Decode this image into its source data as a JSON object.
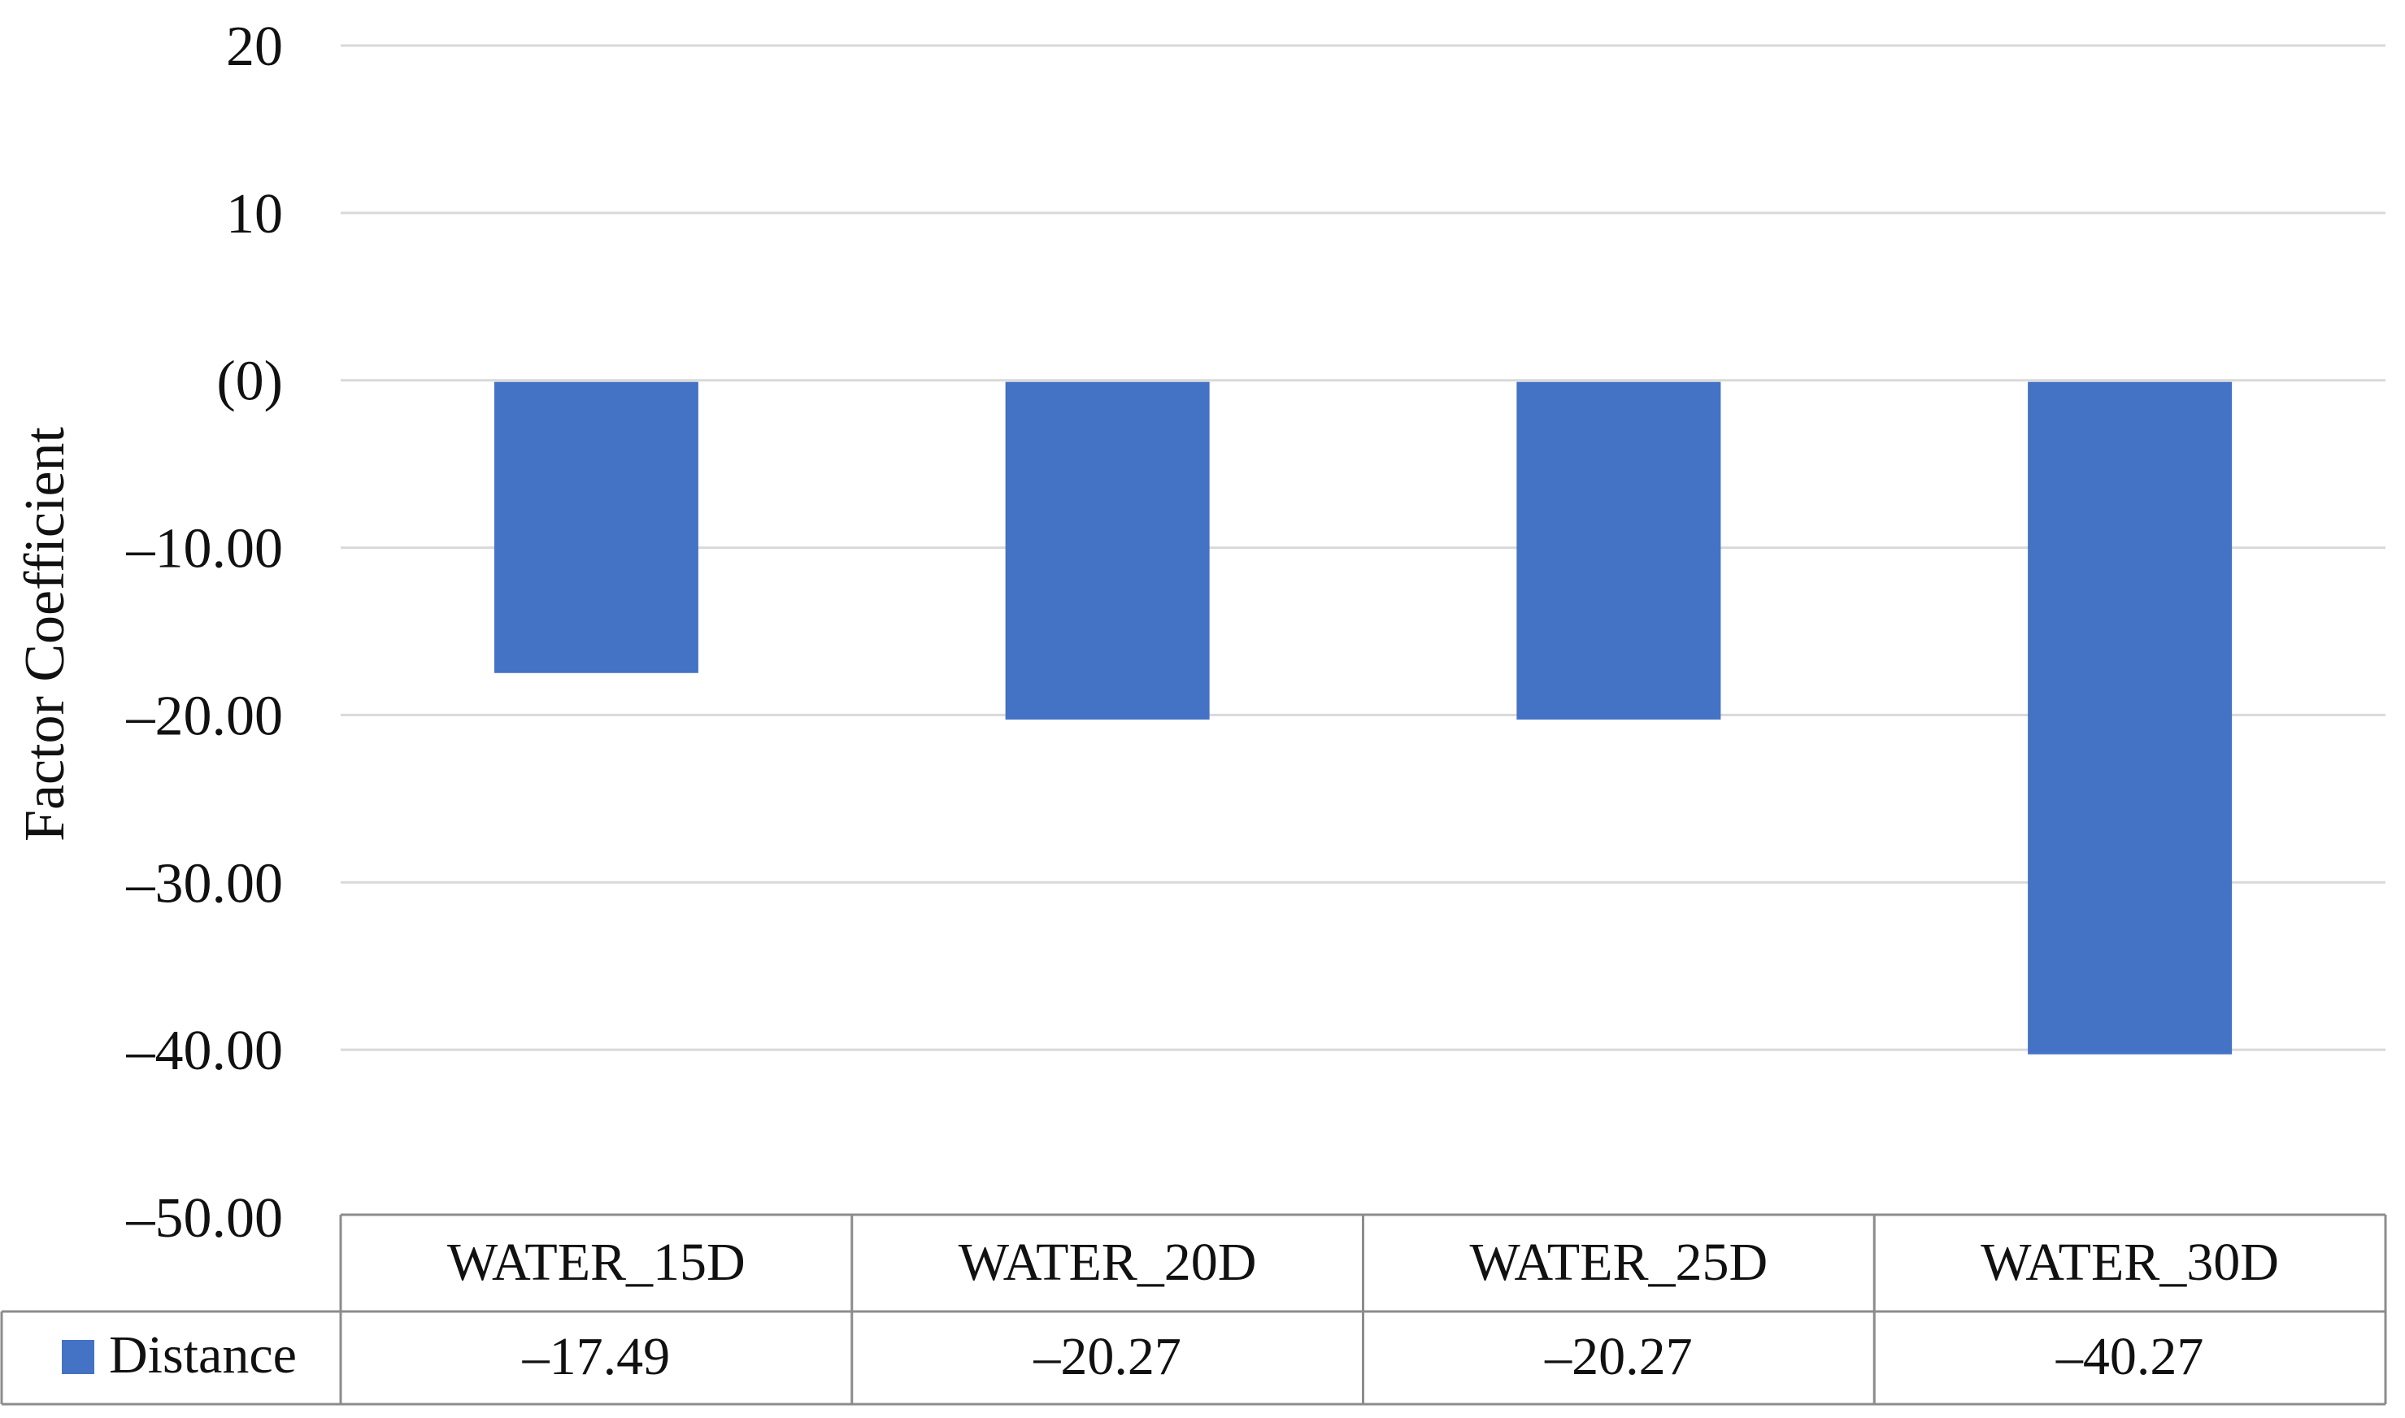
{
  "chart_data": {
    "type": "bar",
    "title": "",
    "xlabel": "",
    "ylabel": "Factor Coefficient",
    "categories": [
      "WATER_15D",
      "WATER_20D",
      "WATER_25D",
      "WATER_30D"
    ],
    "series": [
      {
        "name": "Distance",
        "values": [
          -17.49,
          -20.27,
          -20.27,
          -40.27
        ],
        "color": "#4472C4"
      }
    ],
    "data_table_values": [
      "–17.49",
      "–20.27",
      "–20.27",
      "–40.27"
    ],
    "ylim": [
      -50,
      20
    ],
    "yticks": [
      20,
      10,
      0,
      -10,
      -20,
      -30,
      -40,
      -50
    ],
    "ytick_labels": [
      "20",
      "10",
      "(0)",
      "–10.00",
      "–20.00",
      "–30.00",
      "–40.00",
      "–50.00"
    ],
    "grid": true,
    "legend": "data-table",
    "gridline_color": "#d9d9d9"
  }
}
